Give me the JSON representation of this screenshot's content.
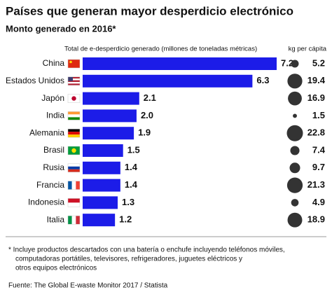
{
  "chart_data": {
    "type": "bar",
    "title": "Países que generan mayor desperdicio electrónico",
    "subtitle": "Monto generado en 2016*",
    "value_header": "Total de e-desperdicio generado (millones de toneladas métricas)",
    "size_header": "kg per cápita",
    "categories": [
      "China",
      "Estados Unidos",
      "Japón",
      "India",
      "Alemania",
      "Brasil",
      "Rusia",
      "Francia",
      "Indonesia",
      "Italia"
    ],
    "values": [
      7.2,
      6.3,
      2.1,
      2.0,
      1.9,
      1.5,
      1.4,
      1.4,
      1.3,
      1.2
    ],
    "value_labels": [
      "7.2",
      "6.3",
      "2.1",
      "2.0",
      "1.9",
      "1.5",
      "1.4",
      "1.4",
      "1.3",
      "1.2"
    ],
    "sizes": [
      5.2,
      19.4,
      16.9,
      1.5,
      22.8,
      7.4,
      9.7,
      21.3,
      4.9,
      18.9
    ],
    "color": "#1c1ce8",
    "size_color": "#333333",
    "note": [
      "* Incluye productos descartados con una batería o enchufe incluyendo teléfonos móviles,",
      "computadoras portátiles, televisores, refrigeradores, juguetes eléctricos y",
      "otros equipos electrónicos"
    ],
    "source": "Fuente: The Global E-waste Monitor 2017 / Statista"
  }
}
